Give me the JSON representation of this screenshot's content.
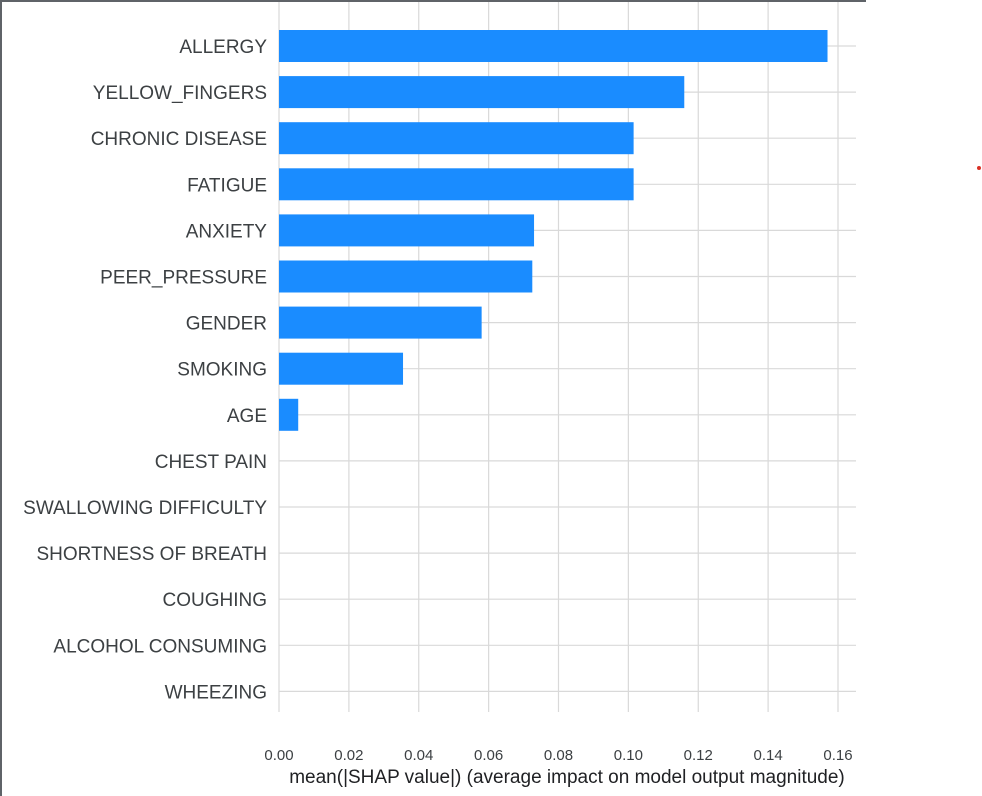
{
  "chart_data": {
    "type": "bar",
    "orientation": "horizontal",
    "categories": [
      "ALLERGY",
      "YELLOW_FINGERS",
      "CHRONIC DISEASE",
      "FATIGUE",
      "ANXIETY",
      "PEER_PRESSURE",
      "GENDER",
      "SMOKING",
      "AGE",
      "CHEST PAIN",
      "SWALLOWING DIFFICULTY",
      "SHORTNESS OF BREATH",
      "COUGHING",
      "ALCOHOL CONSUMING",
      "WHEEZING"
    ],
    "values": [
      0.157,
      0.116,
      0.1015,
      0.1015,
      0.073,
      0.0725,
      0.058,
      0.0355,
      0.0055,
      0,
      0,
      0,
      0,
      0,
      0
    ],
    "xlabel": "mean(|SHAP value|) (average impact on model output magnitude)",
    "xlim": [
      0,
      0.16
    ],
    "xticks": [
      0.0,
      0.02,
      0.04,
      0.06,
      0.08,
      0.1,
      0.12,
      0.14,
      0.16
    ],
    "xtick_labels": [
      "0.00",
      "0.02",
      "0.04",
      "0.06",
      "0.08",
      "0.10",
      "0.12",
      "0.14",
      "0.16"
    ],
    "grid": true,
    "bar_color": "#1a8cff",
    "grid_color": "#d9d9d9"
  }
}
